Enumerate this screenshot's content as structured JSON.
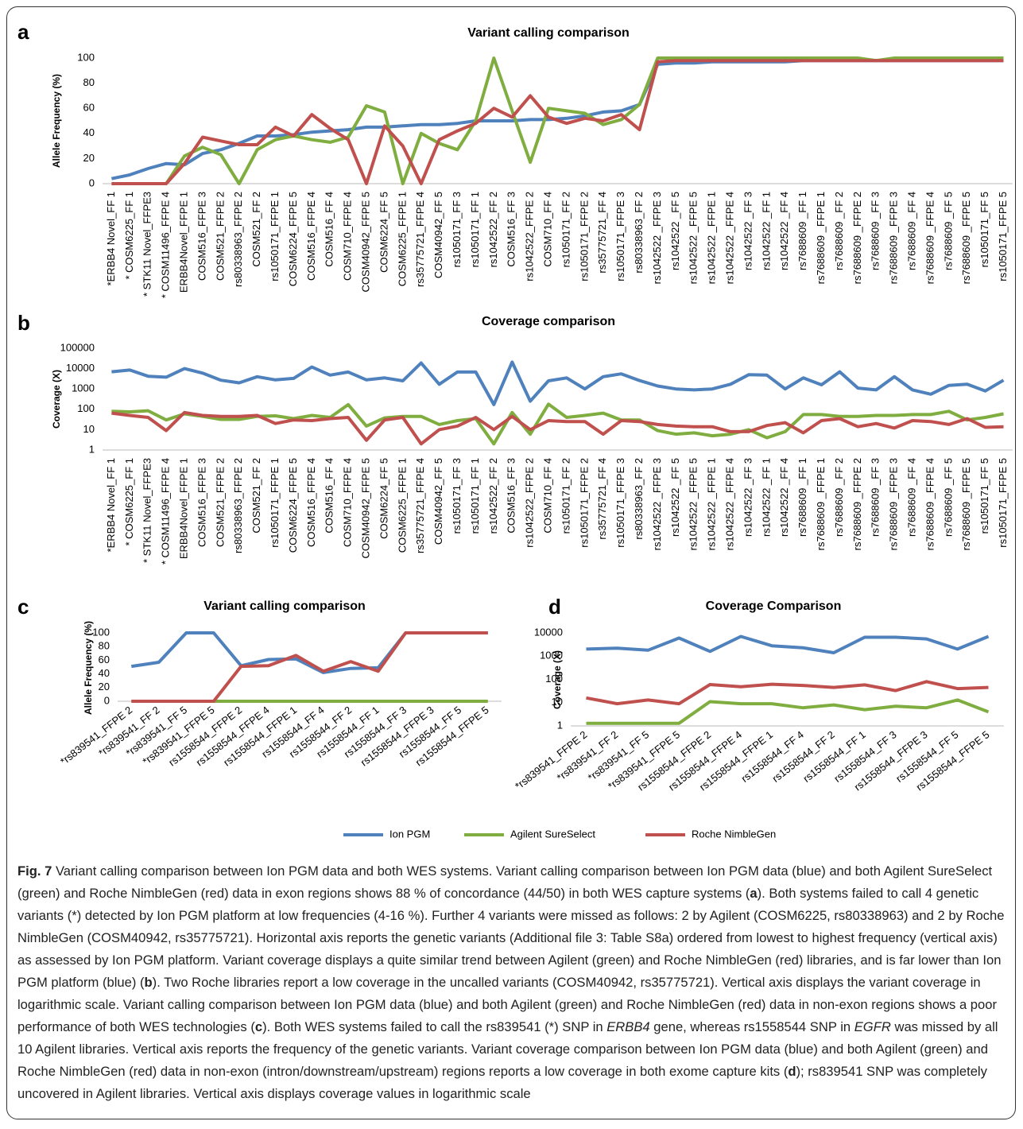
{
  "chart_data": [
    {
      "type": "line",
      "panel": "a",
      "title": "Variant calling comparison",
      "y_label": "Allele Frequency (%)",
      "categories": [
        "*ERBB4 Novel_FF 1",
        "* COSM6225_FF 1",
        "* STK11 Novel_FFPE3",
        "* COSM11496_FFPE 4",
        "ERBB4Novel_FFPE 1",
        "COSM516_FFPE 3",
        "COSM521_FFPE 2",
        "rs80338963_FFPE 2",
        "COSM521_FF 2",
        "rs1050171_FFPE 1",
        "COSM6224_FFPE 5",
        "COSM516_FFPE 4",
        "COSM516_FF 4",
        "COSM710_FFPE 4",
        "COSM40942_FFPE 5",
        "COSM6224_FF 5",
        "COSM6225_FFPE 1",
        "rs35775721_FFPE 4",
        "COSM40942_FF 5",
        "rs1050171_FF 3",
        "rs1050171_FF 1",
        "rs1042522_FF 2",
        "COSM516_FF 3",
        "rs1042522_FFPE 2",
        "COSM710_FF 4",
        "rs1050171_FF 2",
        "rs1050171_FFPE 2",
        "rs35775721_FF 4",
        "rs1050171_FFPE 3",
        "rs80338963_FF 2",
        "rs1042522 _FFPE 3",
        "rs1042522 _FF 5",
        "rs1042522 _FFPE 5",
        "rs1042522 _FFPE 1",
        "rs1042522 _FFPE 4",
        "rs1042522 _FF 3",
        "rs1042522 _FF 1",
        "rs1042522 _FF 4",
        "rs7688609 _FF 1",
        "rs7688609 _FFPE 1",
        "rs7688609 _FF 2",
        "rs7688609 _FFPE 2",
        "rs7688609 _FF 3",
        "rs7688609 _FFPE 3",
        "rs7688609 _FF 4",
        "rs7688609 _FFPE 4",
        "rs7688609 _FF 5",
        "rs7688609 _FFPE 5",
        "rs1050171_FF 5",
        "rs1050171_FFPE 5"
      ],
      "series": [
        {
          "name": "Ion PGM",
          "color": "#4f81bd",
          "values": [
            4,
            7,
            12,
            16,
            15,
            24,
            27,
            32,
            38,
            38,
            39,
            41,
            42,
            43,
            45,
            45,
            46,
            47,
            47,
            48,
            50,
            50,
            50,
            51,
            51,
            52,
            54,
            57,
            58,
            63,
            95,
            96,
            96,
            97,
            97,
            97,
            97,
            97,
            98,
            98,
            98,
            98,
            98,
            98,
            98,
            98,
            98,
            98,
            98,
            98
          ]
        },
        {
          "name": "Agilent SureSelect",
          "color": "#7fad3f",
          "values": [
            0,
            0,
            0,
            0,
            22,
            29,
            23,
            0,
            27,
            35,
            38,
            35,
            33,
            37,
            62,
            57,
            0,
            40,
            32,
            27,
            50,
            100,
            58,
            17,
            60,
            58,
            56,
            47,
            51,
            63,
            100,
            100,
            100,
            100,
            100,
            100,
            100,
            100,
            100,
            100,
            100,
            100,
            98,
            100,
            100,
            100,
            100,
            100,
            100,
            100
          ]
        },
        {
          "name": "Roche NimbleGen",
          "color": "#c0504d",
          "values": [
            0,
            0,
            0,
            0,
            16,
            37,
            34,
            31,
            31,
            45,
            38,
            55,
            44,
            35,
            0,
            46,
            30,
            0,
            35,
            42,
            48,
            60,
            53,
            70,
            53,
            48,
            52,
            50,
            55,
            43,
            97,
            98,
            98,
            98,
            98,
            98,
            98,
            98,
            98,
            98,
            98,
            98,
            98,
            98,
            98,
            98,
            98,
            98,
            98,
            98
          ]
        }
      ],
      "ylim": [
        0,
        100
      ],
      "yticks": [
        0,
        20,
        40,
        60,
        80,
        100
      ],
      "log_scale": false,
      "grid": false
    },
    {
      "type": "line",
      "panel": "b",
      "title": "Coverage comparison",
      "y_label": "Coverage (X)",
      "categories": [
        "*ERBB4 Novel_FF 1",
        "* COSM6225_FF 1",
        "* STK11 Novel_FFPE3",
        "* COSM11496_FFPE 4",
        "ERBB4Novel_FFPE 1",
        "COSM516_FFPE 3",
        "COSM521_FFPE 2",
        "rs80338963_FFPE 2",
        "COSM521_FF 2",
        "rs1050171_FFPE 1",
        "COSM6224_FFPE 5",
        "COSM516_FFPE 4",
        "COSM516_FF 4",
        "COSM710_FFPE 4",
        "COSM40942_FFPE 5",
        "COSM6224_FF 5",
        "COSM6225_FFPE 1",
        "rs35775721_FFPE 4",
        "COSM40942_FF 5",
        "rs1050171_FF 3",
        "rs1050171_FF 1",
        "rs1042522_FF 2",
        "COSM516_FF 3",
        "rs1042522_FFPE 2",
        "COSM710_FF 4",
        "rs1050171_FF 2",
        "rs1050171_FFPE 2",
        "rs35775721_FF 4",
        "rs1050171_FFPE 3",
        "rs80338963_FF 2",
        "rs1042522 _FFPE 3",
        "rs1042522 _FF 5",
        "rs1042522 _FFPE 5",
        "rs1042522 _FFPE 1",
        "rs1042522 _FFPE 4",
        "rs1042522 _FF 3",
        "rs1042522 _FF 1",
        "rs1042522 _FF 4",
        "rs7688609 _FF 1",
        "rs7688609 _FFPE 1",
        "rs7688609 _FF 2",
        "rs7688609 _FFPE 2",
        "rs7688609 _FF 3",
        "rs7688609 _FFPE 3",
        "rs7688609 _FF 4",
        "rs7688609 _FFPE 4",
        "rs7688609 _FF 5",
        "rs7688609 _FFPE 5",
        "rs1050171_FF 5",
        "rs1050171_FFPE 5"
      ],
      "series": [
        {
          "name": "Ion PGM",
          "color": "#4f81bd",
          "values": [
            7000,
            8500,
            4200,
            3800,
            10000,
            6000,
            2700,
            2000,
            4000,
            2800,
            3300,
            12000,
            4800,
            6800,
            2800,
            3500,
            2500,
            19000,
            1700,
            6800,
            6800,
            170,
            21000,
            250,
            2500,
            3500,
            1000,
            4000,
            5500,
            2600,
            1400,
            1000,
            900,
            1000,
            1700,
            5000,
            4800,
            1000,
            3500,
            1600,
            7000,
            1100,
            900,
            4000,
            900,
            550,
            1500,
            1700,
            800,
            2700
          ]
        },
        {
          "name": "Agilent SureSelect",
          "color": "#7fad3f",
          "values": [
            80,
            75,
            85,
            30,
            60,
            45,
            32,
            32,
            45,
            48,
            35,
            50,
            40,
            170,
            15,
            38,
            45,
            45,
            18,
            28,
            35,
            2,
            70,
            6,
            180,
            40,
            50,
            65,
            30,
            30,
            9,
            6,
            7,
            5,
            6,
            10,
            4,
            8,
            55,
            55,
            45,
            45,
            50,
            50,
            55,
            55,
            80,
            30,
            40,
            60
          ]
        },
        {
          "name": "Roche NimbleGen",
          "color": "#c0504d",
          "values": [
            65,
            50,
            40,
            9,
            70,
            50,
            45,
            45,
            50,
            20,
            30,
            28,
            35,
            40,
            3,
            30,
            40,
            2,
            10,
            15,
            40,
            10,
            45,
            10,
            28,
            25,
            25,
            6,
            28,
            25,
            18,
            15,
            14,
            14,
            8,
            8,
            16,
            22,
            7,
            28,
            35,
            14,
            20,
            12,
            28,
            25,
            18,
            35,
            13,
            14
          ]
        }
      ],
      "ylim": [
        1,
        100000
      ],
      "yticks": [
        1,
        10,
        100,
        1000,
        10000,
        100000
      ],
      "log_scale": true,
      "grid": false
    },
    {
      "type": "line",
      "panel": "c",
      "title": "Variant calling comparison",
      "y_label": "Allele Frequency (%)",
      "categories": [
        "*rs839541_FFPE 2",
        "*rs839541_FF 2",
        "*rs839541_FF 5",
        "*rs839541_FFPE 5",
        "rs1558544_FFPE 2",
        "rs1558544_FFPE 4",
        "rs1558544_FFPE 1",
        "rs1558544_FF 4",
        "rs1558544_FF 2",
        "rs1558544_FF 1",
        "rs1558544_FF 3",
        "rs1558544_FFPE 3",
        "rs1558544_FF 5",
        "rs1558544_FFPE 5"
      ],
      "series": [
        {
          "name": "Ion PGM",
          "color": "#4f81bd",
          "values": [
            51,
            57,
            100,
            100,
            52,
            61,
            62,
            42,
            48,
            49,
            100,
            100,
            100,
            100
          ]
        },
        {
          "name": "Agilent SureSelect",
          "color": "#7fad3f",
          "values": [
            0,
            0,
            0,
            0,
            0,
            0,
            0,
            0,
            0,
            0,
            0,
            0,
            0,
            0
          ]
        },
        {
          "name": "Roche NimbleGen",
          "color": "#c0504d",
          "values": [
            0,
            0,
            0,
            0,
            51,
            52,
            67,
            44,
            58,
            44,
            100,
            100,
            100,
            100
          ]
        }
      ],
      "ylim": [
        0,
        100
      ],
      "yticks": [
        0,
        20,
        40,
        60,
        80,
        100
      ],
      "log_scale": false,
      "grid": false
    },
    {
      "type": "line",
      "panel": "d",
      "title": "Coverage Comparison",
      "y_label": "Coverage (X)",
      "categories": [
        "*rs839541_FFPE 2",
        "*rs839541_FF 2",
        "*rs839541_FF 5",
        "*rs839541_FFPE 5",
        "rs1558544_FFPE 2",
        "rs1558544_FFPE 4",
        "rs1558544_FFPE 1",
        "rs1558544_FF 4",
        "rs1558544_FF 2",
        "rs1558544_FF 1",
        "rs1558544_FF 3",
        "rs1558544_FFPE 3",
        "rs1558544_FF 5",
        "rs1558544_FFPE 5"
      ],
      "series": [
        {
          "name": "Ion PGM",
          "color": "#4f81bd",
          "values": [
            2000,
            2200,
            1800,
            6000,
            1600,
            7000,
            2800,
            2300,
            1400,
            6500,
            6500,
            5500,
            2000,
            7000
          ]
        },
        {
          "name": "Agilent SureSelect",
          "color": "#7fad3f",
          "values": [
            1.3,
            1.3,
            1.3,
            1.3,
            11,
            9,
            9,
            6,
            8,
            5,
            7,
            6,
            13,
            4
          ]
        },
        {
          "name": "Roche NimbleGen",
          "color": "#c0504d",
          "values": [
            16,
            9,
            13,
            9,
            60,
            48,
            62,
            55,
            45,
            58,
            33,
            80,
            40,
            45
          ]
        }
      ],
      "ylim": [
        1,
        10000
      ],
      "yticks": [
        1,
        10,
        100,
        1000,
        10000
      ],
      "log_scale": true,
      "grid": false
    }
  ],
  "caption": [
    "Fig. 7",
    " Variant calling comparison between Ion PGM data and both WES systems. Variant calling comparison between Ion PGM data (blue) and both Agilent SureSelect (green) and Roche NimbleGen (red) data in exon regions shows 88 % of concordance (44/50) in both WES capture systems (",
    "a",
    "). Both systems failed to call 4 genetic variants (*) detected by Ion PGM platform at low frequencies (4-16 %). Further 4 variants were missed as follows: 2 by Agilent (COSM6225, rs80338963) and 2 by Roche NimbleGen (COSM40942, rs35775721). Horizontal axis reports the genetic variants (Additional file 3: Table S8a) ordered from lowest to highest frequency (vertical axis) as assessed by Ion PGM platform. Variant coverage displays a quite similar trend between Agilent (green) and Roche NimbleGen (red) libraries, and is far lower than Ion PGM platform (blue) (",
    "b",
    "). Two Roche libraries report a low coverage in the uncalled variants (COSM40942, rs35775721). Vertical axis displays the variant coverage in logarithmic scale. Variant calling comparison between Ion PGM data (blue) and both Agilent (green) and Roche NimbleGen (red) data in non-exon regions shows a poor performance of both WES technologies (",
    "c",
    "). Both WES systems failed to call the rs839541 (*) SNP in ",
    "ERBB4",
    " gene, whereas rs1558544 SNP in ",
    "EGFR",
    " was missed by all 10 Agilent libraries. Vertical axis reports the frequency of the genetic variants. Variant coverage comparison between Ion PGM data (blue) and both Agilent (green) and Roche NimbleGen (red) data in non-exon (intron/downstream/upstream) regions reports a low coverage in both exome capture kits (",
    "d",
    "); rs839541 SNP was completely uncovered in Agilent libraries. Vertical axis displays coverage values in logarithmic scale"
  ]
}
